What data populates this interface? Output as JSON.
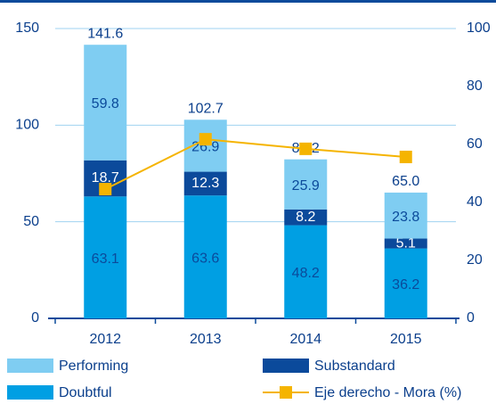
{
  "chart_data": {
    "type": "bar",
    "stacked": true,
    "categories": [
      "2012",
      "2013",
      "2014",
      "2015"
    ],
    "series": [
      {
        "name": "Doubtful",
        "color": "#009fe3",
        "label_color": "#0b4a9b",
        "values": [
          63.1,
          63.6,
          48.2,
          36.2
        ]
      },
      {
        "name": "Substandard",
        "color": "#0b4a9b",
        "label_color": "#ffffff",
        "values": [
          18.7,
          12.3,
          8.2,
          5.1
        ]
      },
      {
        "name": "Performing",
        "color": "#7fcdf2",
        "label_color": "#0b4a9b",
        "values": [
          59.8,
          26.9,
          25.9,
          23.8
        ]
      },
      {
        "name": "Eje derecho - Mora (%)",
        "type": "line",
        "axis": "y2",
        "color": "#f5b400",
        "values": [
          44.6,
          61.8,
          58.5,
          55.7
        ]
      }
    ],
    "totals": {
      "values": [
        141.6,
        102.7,
        82.2,
        65
      ],
      "value_labels": [
        "141.6",
        "102.7",
        "82.2",
        "65.0"
      ]
    },
    "ylim": [
      0,
      150
    ],
    "yticks": [
      0,
      50,
      100,
      150
    ],
    "y2lim": [
      0,
      100
    ],
    "y2ticks": [
      0,
      20,
      40,
      60,
      80,
      100
    ],
    "grid": true,
    "legend": "bottom"
  }
}
